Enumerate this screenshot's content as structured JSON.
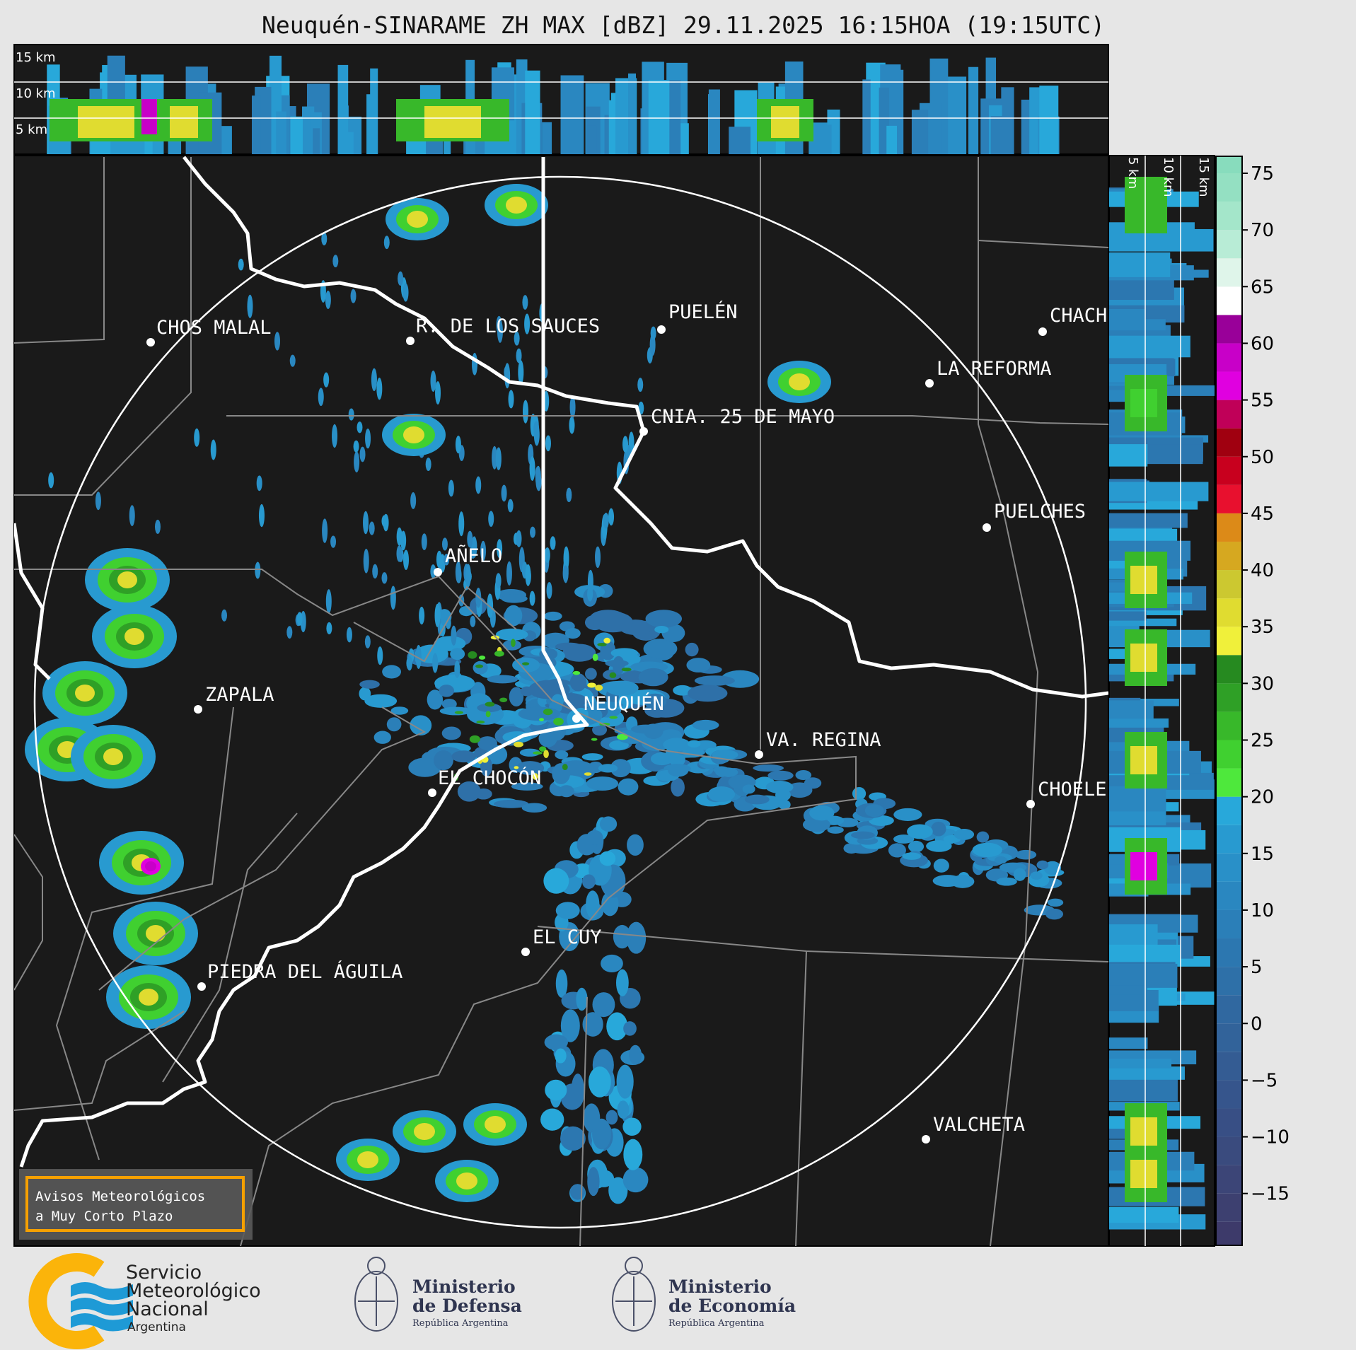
{
  "title": "Neuquén-SINARAME ZH MAX [dBZ] 29.11.2025 16:15HOA (19:15UTC)",
  "top_panel": {
    "height_labels": [
      "15 km",
      "10 km",
      "5 km"
    ]
  },
  "side_panel": {
    "height_labels": [
      "5 km",
      "10 km",
      "15 km"
    ]
  },
  "cities": [
    {
      "name": "CHOS MALAL"
    },
    {
      "name": "R. DE LOS SAUCES"
    },
    {
      "name": "PUELÉN"
    },
    {
      "name": "CHACH"
    },
    {
      "name": "LA REFORMA"
    },
    {
      "name": "CNIA. 25 DE MAYO"
    },
    {
      "name": "PUELCHES"
    },
    {
      "name": "AÑELO"
    },
    {
      "name": "ZAPALA"
    },
    {
      "name": "NEUQUÉN"
    },
    {
      "name": "VA. REGINA"
    },
    {
      "name": "EL CHOCÓN"
    },
    {
      "name": "CHOELE"
    },
    {
      "name": "EL CUY"
    },
    {
      "name": "PIEDRA DEL ÁGUILA"
    },
    {
      "name": "VALCHETA"
    }
  ],
  "colorbar": {
    "unit": "dBZ",
    "ticks": [
      "75",
      "70",
      "65",
      "60",
      "55",
      "50",
      "45",
      "40",
      "35",
      "30",
      "25",
      "20",
      "15",
      "10",
      "5",
      "0",
      "−5",
      "−10",
      "−15"
    ],
    "bins_start": -20,
    "bin_width": 2.5,
    "colors": [
      "#3d3a6a",
      "#3d4070",
      "#3c4577",
      "#3a4b7e",
      "#384f85",
      "#36558c",
      "#345c93",
      "#32639a",
      "#3068a0",
      "#2e70a8",
      "#2c77b0",
      "#2b7fb8",
      "#2a87c0",
      "#2990c8",
      "#289ad0",
      "#28a8da",
      "#4ee83c",
      "#40d030",
      "#38b82a",
      "#2fa026",
      "#268a20",
      "#f0f03a",
      "#e0dc30",
      "#ccc830",
      "#d6a820",
      "#dc8a18",
      "#e8102e",
      "#c8001e",
      "#a00010",
      "#c00058",
      "#e000e0",
      "#c800c8",
      "#990099",
      "#ffffff",
      "#dff5ea",
      "#b8ecd6",
      "#a4e6ca",
      "#94e0c2",
      "#88dcbd",
      "#88dcbd"
    ]
  },
  "warning_box": {
    "line1": "Avisos Meteorológicos",
    "line2": "a Muy Corto Plazo",
    "border_color": "#f5a000"
  },
  "logos": {
    "smn": {
      "line1": "Servicio",
      "line2": "Meteorológico",
      "line3": "Nacional",
      "line4": "Argentina"
    },
    "defensa": {
      "line1": "Ministerio",
      "line2": "de Defensa",
      "line3": "República Argentina"
    },
    "economia": {
      "line1": "Ministerio",
      "line2": "de Economía",
      "line3": "República Argentina"
    }
  }
}
